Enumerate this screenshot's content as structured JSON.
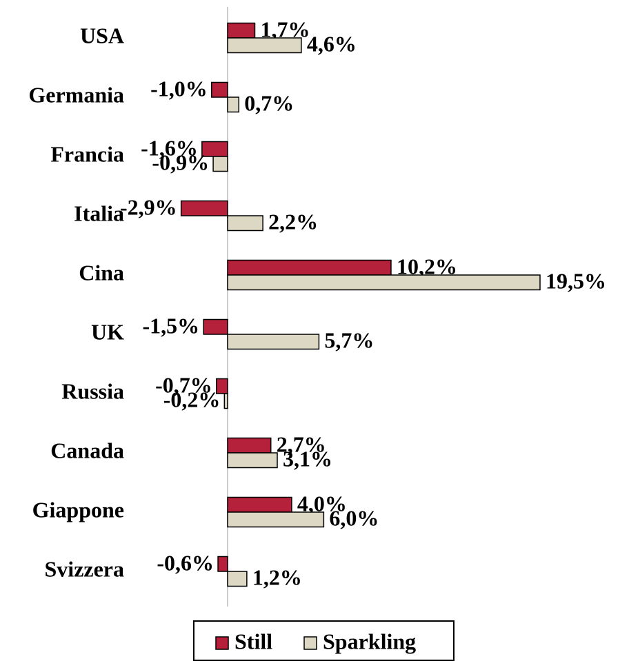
{
  "chart_data": {
    "type": "hbar",
    "categories": [
      "USA",
      "Germania",
      "Francia",
      "Italia",
      "Cina",
      "UK",
      "Russia",
      "Canada",
      "Giappone",
      "Svizzera"
    ],
    "series": [
      {
        "name": "Still",
        "color": "#b5203a",
        "values": [
          1.7,
          -1.0,
          -1.6,
          -2.9,
          10.2,
          -1.5,
          -0.7,
          2.7,
          4.0,
          -0.6
        ],
        "value_labels": [
          "1,7%",
          "-1,0%",
          "-1,6%",
          "-2,9%",
          "10,2%",
          "-1,5%",
          "-0,7%",
          "2,7%",
          "4,0%",
          "-0,6%"
        ]
      },
      {
        "name": "Sparkling",
        "color": "#ddd8c4",
        "values": [
          4.6,
          0.7,
          -0.9,
          2.2,
          19.5,
          5.7,
          -0.2,
          3.1,
          6.0,
          1.2
        ],
        "value_labels": [
          "4,6%",
          "0,7%",
          "-0,9%",
          "2,2%",
          "19,5%",
          "5,7%",
          "-0,2%",
          "3,1%",
          "6,0%",
          "1,2%"
        ]
      }
    ],
    "legend": "bottom"
  }
}
